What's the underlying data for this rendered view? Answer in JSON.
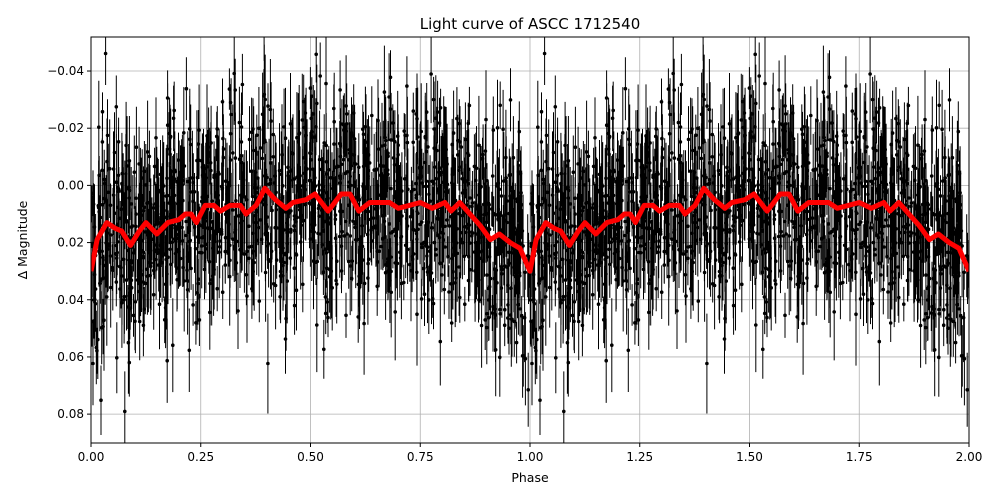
{
  "chart_data": {
    "type": "scatter",
    "title": "Light curve of ASCC 1712540",
    "xlabel": "Phase",
    "ylabel": "Δ Magnitude",
    "xlim": [
      0,
      2
    ],
    "ylim": [
      0.0901,
      -0.0519
    ],
    "y_inverted": true,
    "grid": true,
    "xticks": [
      "0.00",
      "0.25",
      "0.50",
      "0.75",
      "1.00",
      "1.25",
      "1.50",
      "1.75",
      "2.00"
    ],
    "xtick_values": [
      0,
      0.25,
      0.5,
      0.75,
      1.0,
      1.25,
      1.5,
      1.75,
      2.0
    ],
    "yticks": [
      "−0.04",
      "−0.02",
      "0.00",
      "0.02",
      "0.04",
      "0.06",
      "0.08"
    ],
    "ytick_values": [
      -0.04,
      -0.02,
      0,
      0.02,
      0.04,
      0.06,
      0.08
    ],
    "colors": {
      "data_points": "#000000",
      "model": "#ff0000",
      "grid": "#b0b0b0"
    },
    "model_curve_one_period": {
      "phase": [
        0.0,
        0.014,
        0.036,
        0.055,
        0.07,
        0.09,
        0.11,
        0.125,
        0.15,
        0.175,
        0.2,
        0.215,
        0.228,
        0.24,
        0.26,
        0.28,
        0.295,
        0.317,
        0.34,
        0.353,
        0.376,
        0.396,
        0.42,
        0.444,
        0.46,
        0.49,
        0.51,
        0.54,
        0.57,
        0.59,
        0.61,
        0.635,
        0.68,
        0.7,
        0.75,
        0.777,
        0.806,
        0.82,
        0.84,
        0.863,
        0.886,
        0.91,
        0.93,
        0.955,
        0.977,
        1.0
      ],
      "delta_mag": [
        0.03,
        0.019,
        0.013,
        0.015,
        0.016,
        0.021,
        0.016,
        0.013,
        0.017,
        0.013,
        0.012,
        0.01,
        0.01,
        0.013,
        0.007,
        0.007,
        0.009,
        0.007,
        0.007,
        0.01,
        0.007,
        0.001,
        0.005,
        0.008,
        0.006,
        0.005,
        0.003,
        0.009,
        0.003,
        0.003,
        0.009,
        0.006,
        0.006,
        0.008,
        0.006,
        0.008,
        0.006,
        0.009,
        0.006,
        0.01,
        0.014,
        0.019,
        0.017,
        0.02,
        0.022,
        0.03
      ]
    },
    "scatter_spread_std": 0.02
  }
}
